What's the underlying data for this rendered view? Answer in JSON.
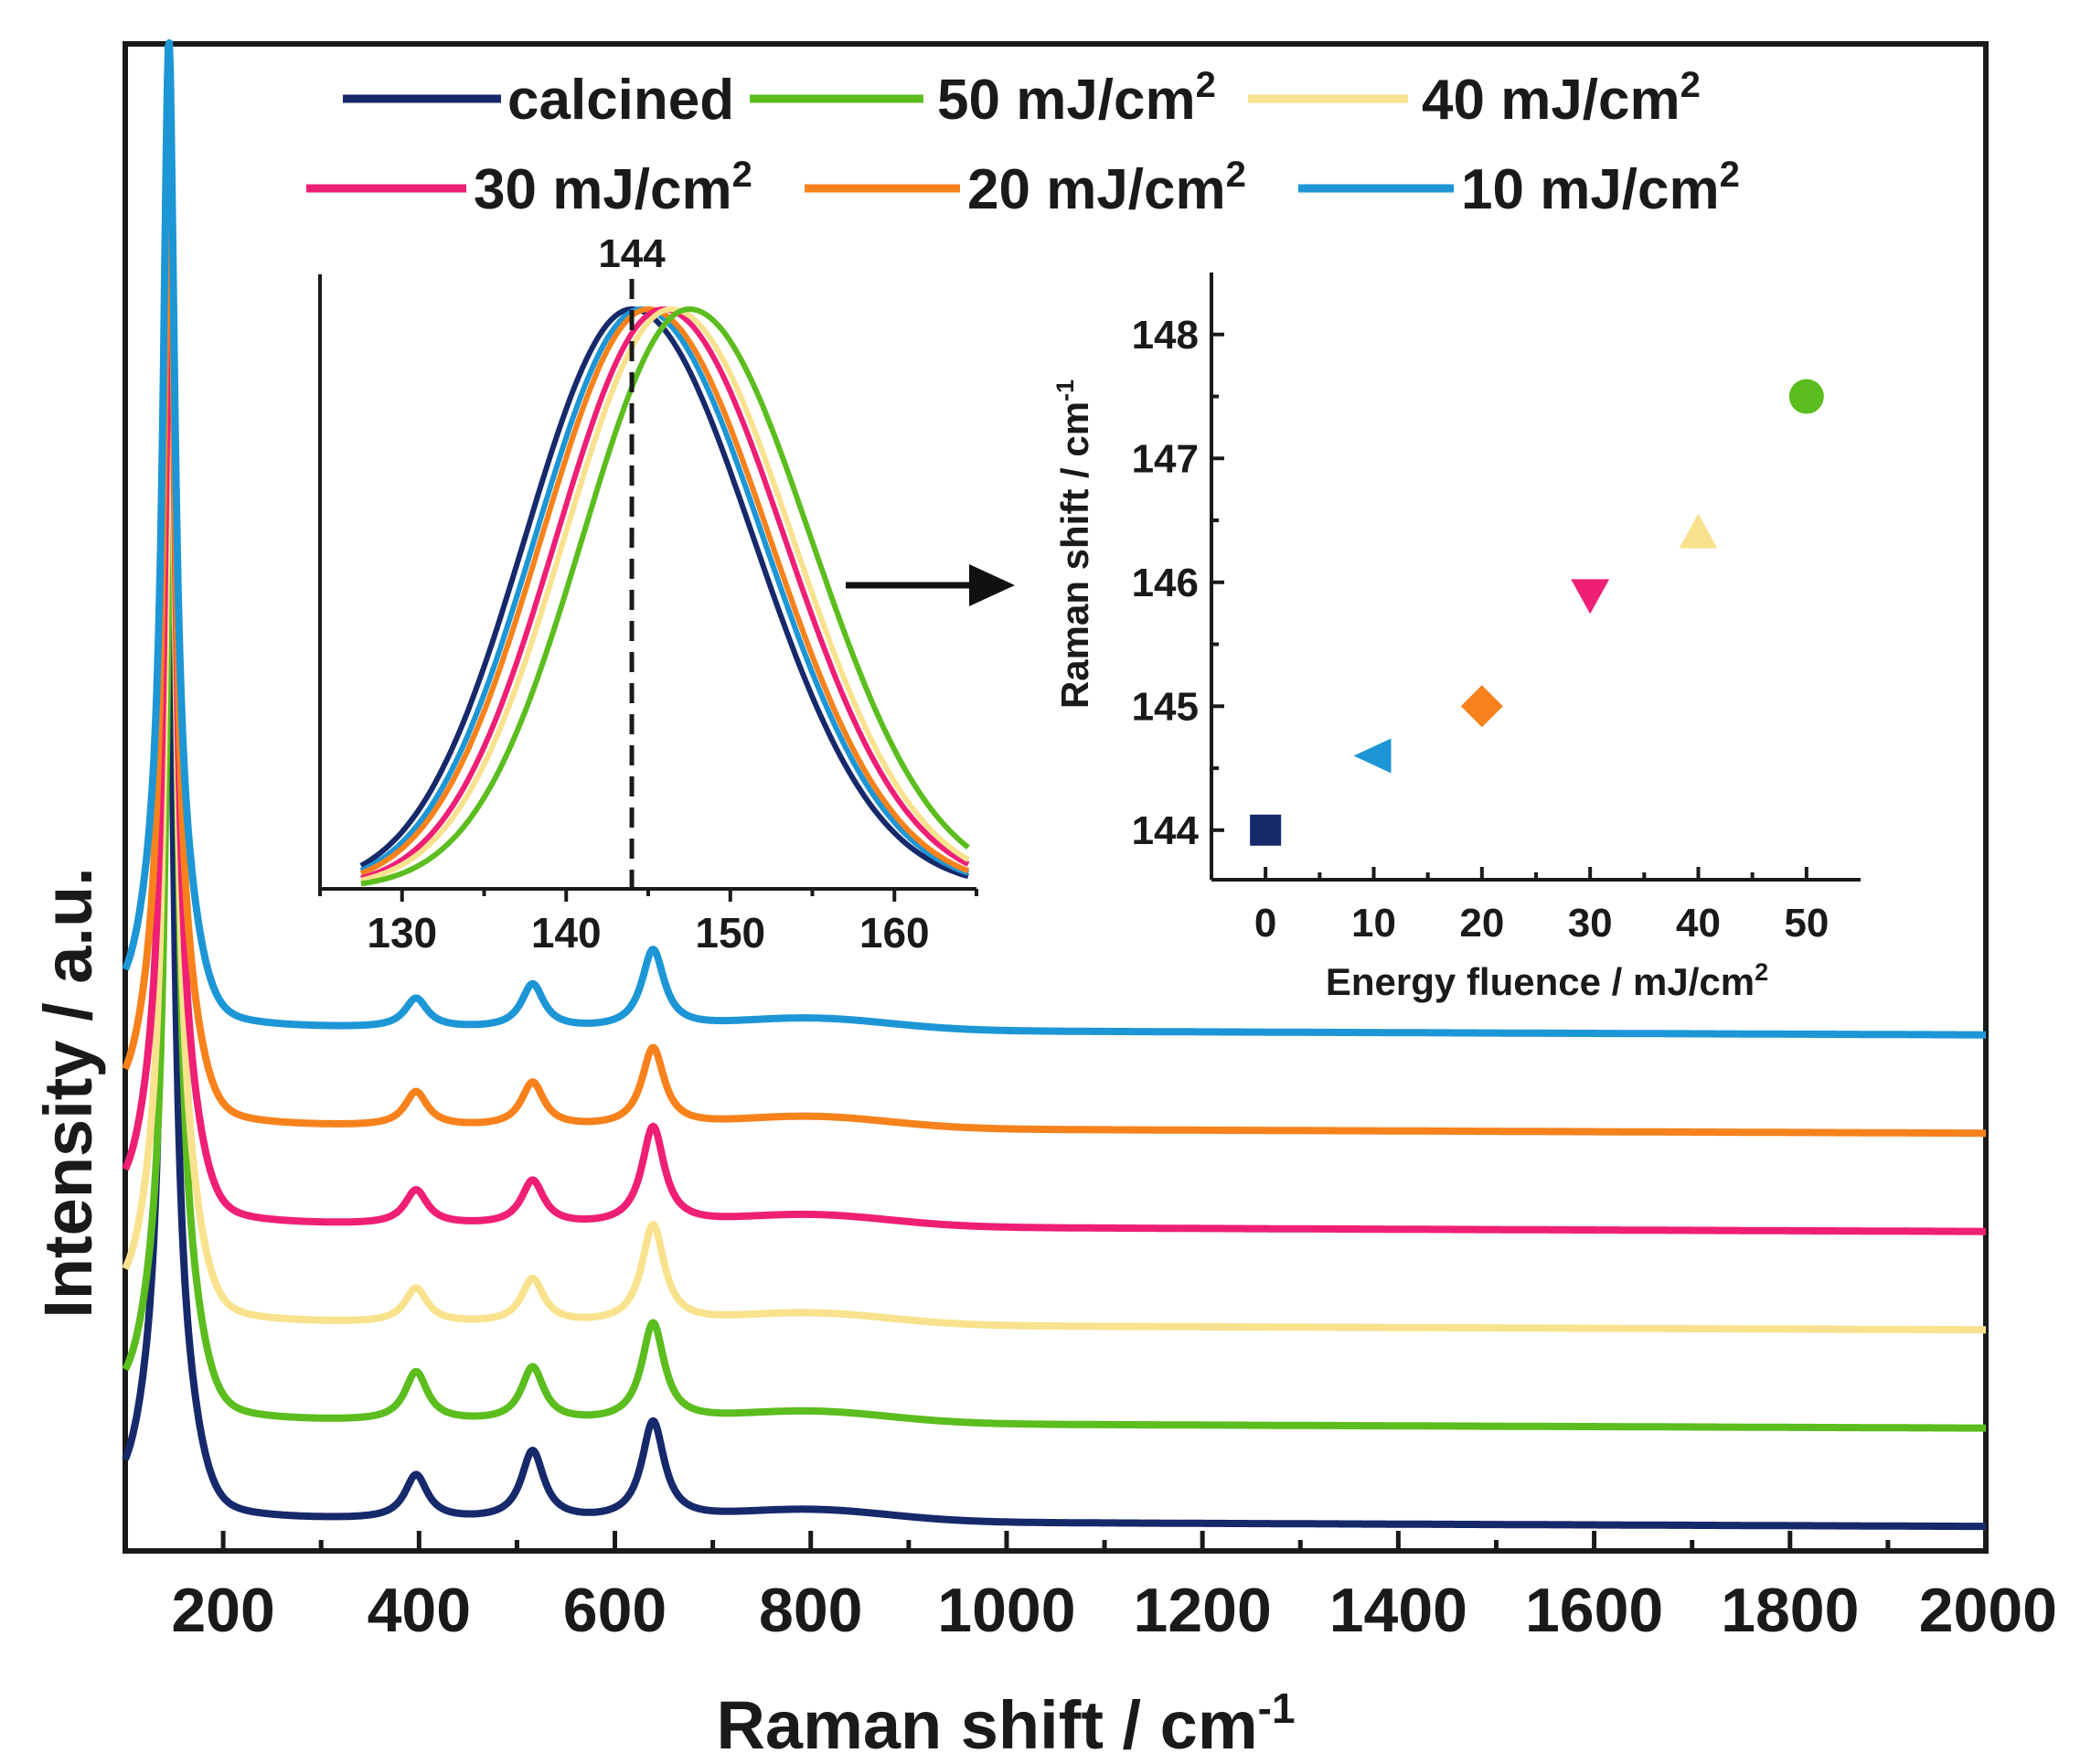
{
  "chart_data": [
    {
      "id": "main",
      "type": "line",
      "xlabel": "Raman shift / cm",
      "xlabel_sup": "-1",
      "ylabel": "Intensity / a.u.",
      "xlim": [
        100,
        2000
      ],
      "xticks": [
        200,
        400,
        600,
        800,
        1000,
        1200,
        1400,
        1600,
        1800,
        2000
      ],
      "xtick_labels": [
        "200",
        "400",
        "600",
        "800",
        "1000",
        "1200",
        "1400",
        "1600",
        "1800",
        "2000"
      ],
      "peaks_cm": [
        144,
        397,
        516,
        639
      ],
      "legend": [
        {
          "name": "calcined",
          "sup": "",
          "color": "#16296b"
        },
        {
          "name": "50 mJ/cm",
          "sup": "2",
          "color": "#5bbd1e"
        },
        {
          "name": "40 mJ/cm",
          "sup": "2",
          "color": "#f9e28e"
        },
        {
          "name": "30 mJ/cm",
          "sup": "2",
          "color": "#ef1f75"
        },
        {
          "name": "20 mJ/cm",
          "sup": "2",
          "color": "#f7821c"
        },
        {
          "name": "10 mJ/cm",
          "sup": "2",
          "color": "#1d96d6"
        }
      ],
      "series": [
        {
          "name": "calcined",
          "color": "#16296b",
          "baseline": 0.0,
          "peak_height": 1.0,
          "peaks": [
            [
              144,
              1.0
            ],
            [
              397,
              0.045
            ],
            [
              516,
              0.07
            ],
            [
              639,
              0.1
            ]
          ]
        },
        {
          "name": "50 mJ/cm2",
          "color": "#5bbd1e",
          "baseline": 0.105,
          "peaks": [
            [
              147.5,
              1.0
            ],
            [
              397,
              0.05
            ],
            [
              516,
              0.055
            ],
            [
              639,
              0.1
            ]
          ]
        },
        {
          "name": "40 mJ/cm2",
          "color": "#f9e28e",
          "baseline": 0.205,
          "peaks": [
            [
              146.4,
              1.0
            ],
            [
              397,
              0.035
            ],
            [
              516,
              0.045
            ],
            [
              639,
              0.1
            ]
          ]
        },
        {
          "name": "30 mJ/cm2",
          "color": "#ef1f75",
          "baseline": 0.305,
          "peaks": [
            [
              145.9,
              1.0
            ],
            [
              397,
              0.035
            ],
            [
              516,
              0.045
            ],
            [
              639,
              0.1
            ]
          ]
        },
        {
          "name": "20 mJ/cm2",
          "color": "#f7821c",
          "baseline": 0.405,
          "peaks": [
            [
              145.0,
              1.0
            ],
            [
              397,
              0.035
            ],
            [
              516,
              0.045
            ],
            [
              639,
              0.08
            ]
          ]
        },
        {
          "name": "10 mJ/cm2",
          "color": "#1d96d6",
          "baseline": 0.505,
          "peaks": [
            [
              144.6,
              1.0
            ],
            [
              397,
              0.03
            ],
            [
              516,
              0.045
            ],
            [
              639,
              0.08
            ]
          ]
        }
      ]
    },
    {
      "id": "inset_zoom",
      "type": "line",
      "xlim": [
        125,
        165
      ],
      "xticks": [
        130,
        140,
        150,
        160
      ],
      "xtick_labels": [
        "130",
        "140",
        "150",
        "160"
      ],
      "marker_line_x": 144,
      "marker_label": "144",
      "series": [
        {
          "name": "calcined",
          "color": "#16296b",
          "center": 144.0
        },
        {
          "name": "10 mJ/cm2",
          "color": "#1d96d6",
          "center": 144.6
        },
        {
          "name": "20 mJ/cm2",
          "color": "#f7821c",
          "center": 145.0
        },
        {
          "name": "30 mJ/cm2",
          "color": "#ef1f75",
          "center": 145.9
        },
        {
          "name": "40 mJ/cm2",
          "color": "#f9e28e",
          "center": 146.4
        },
        {
          "name": "50 mJ/cm2",
          "color": "#5bbd1e",
          "center": 147.5
        }
      ]
    },
    {
      "id": "inset_shift",
      "type": "scatter",
      "xlabel": "Energy fluence / mJ/cm",
      "xlabel_sup": "2",
      "ylabel": "Raman shift / cm",
      "ylabel_sup": "-1",
      "xlim": [
        -5,
        55
      ],
      "ylim": [
        143.6,
        148.5
      ],
      "xticks": [
        0,
        10,
        20,
        30,
        40,
        50
      ],
      "xtick_labels": [
        "0",
        "10",
        "20",
        "30",
        "40",
        "50"
      ],
      "yticks": [
        144,
        145,
        146,
        147,
        148
      ],
      "ytick_labels": [
        "144",
        "145",
        "146",
        "147",
        "148"
      ],
      "points": [
        {
          "x": 0,
          "y": 144.0,
          "marker": "square",
          "color": "#16296b"
        },
        {
          "x": 10,
          "y": 144.6,
          "marker": "triangle-left",
          "color": "#1d96d6"
        },
        {
          "x": 20,
          "y": 145.0,
          "marker": "diamond",
          "color": "#f7821c"
        },
        {
          "x": 30,
          "y": 145.9,
          "marker": "triangle-down",
          "color": "#ef1f75"
        },
        {
          "x": 40,
          "y": 146.4,
          "marker": "triangle-up",
          "color": "#f9e28e"
        },
        {
          "x": 50,
          "y": 147.5,
          "marker": "circle",
          "color": "#5bbd1e"
        }
      ]
    }
  ]
}
